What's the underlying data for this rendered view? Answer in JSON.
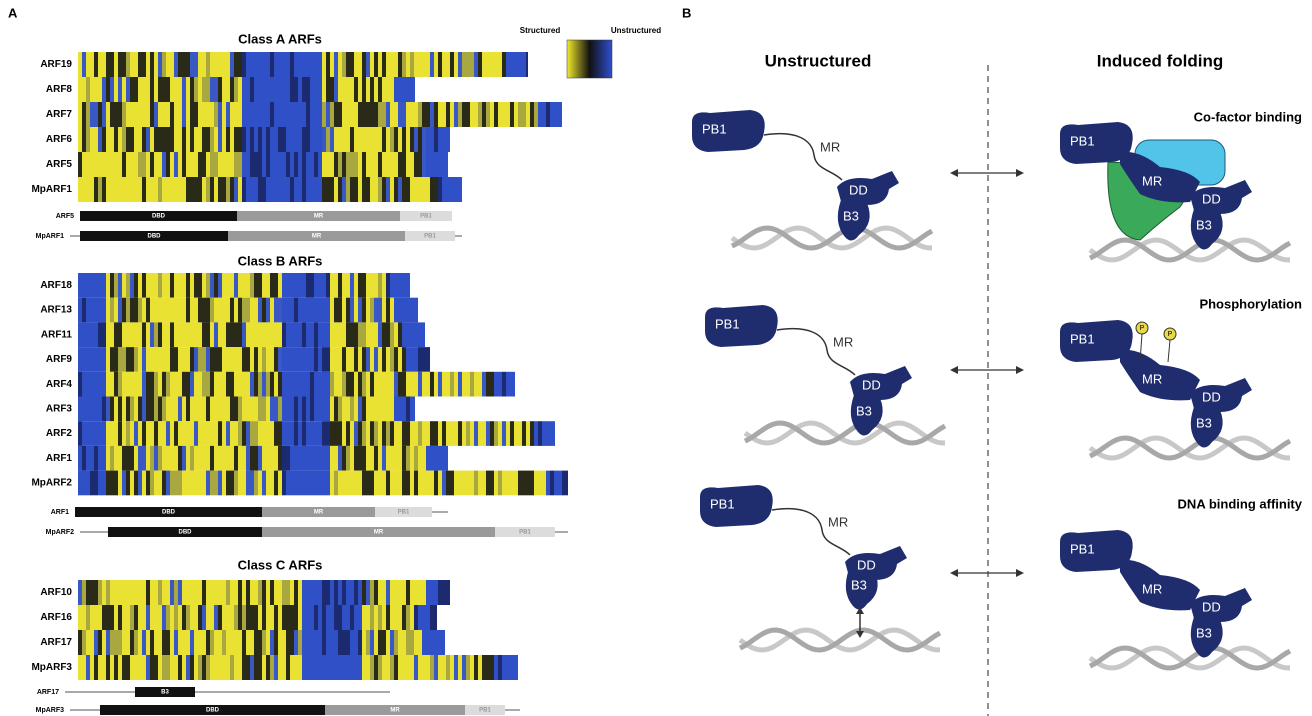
{
  "panel_a": {
    "label": "A",
    "legend": {
      "low": "Structured",
      "high": "Unstructured"
    },
    "classes": [
      {
        "title": "Class A ARFs",
        "rows": [
          "ARF19",
          "ARF8",
          "ARF7",
          "ARF6",
          "ARF5",
          "MpARF1"
        ],
        "domains": [
          {
            "name": "ARF5",
            "segments": [
              "DBD",
              "MR",
              "PB1"
            ]
          },
          {
            "name": "MpARF1",
            "segments": [
              "DBD",
              "MR",
              "PB1"
            ]
          }
        ]
      },
      {
        "title": "Class B ARFs",
        "rows": [
          "ARF18",
          "ARF13",
          "ARF11",
          "ARF9",
          "ARF4",
          "ARF3",
          "ARF2",
          "ARF1",
          "MpARF2"
        ],
        "domains": [
          {
            "name": "ARF1",
            "segments": [
              "DBD",
              "MR",
              "PB1"
            ]
          },
          {
            "name": "MpARF2",
            "segments": [
              "DBD",
              "MR",
              "PB1"
            ]
          }
        ]
      },
      {
        "title": "Class C ARFs",
        "rows": [
          "ARF10",
          "ARF16",
          "ARF17",
          "MpARF3"
        ],
        "domains": [
          {
            "name": "ARF17",
            "segments": [
              "B3"
            ]
          },
          {
            "name": "MpARF3",
            "segments": [
              "DBD",
              "MR",
              "PB1"
            ]
          }
        ]
      }
    ]
  },
  "panel_b": {
    "label": "B",
    "columns": [
      "Unstructured",
      "Induced folding"
    ],
    "scenarios": [
      "Co-factor binding",
      "Phosphorylation",
      "DNA binding affinity"
    ],
    "proteins": {
      "pb1": "PB1",
      "mr": "MR",
      "dd": "DD",
      "b3": "B3"
    },
    "phospho": "P"
  }
}
